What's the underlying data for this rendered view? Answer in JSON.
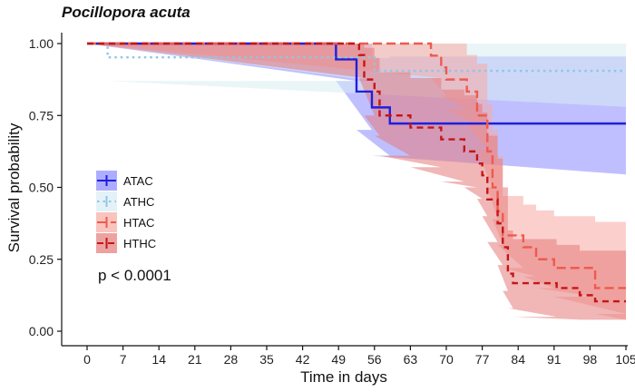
{
  "chart_data": {
    "type": "line",
    "subtype": "kaplan-meier survival curve",
    "title": "Pocillopora acuta",
    "xlabel": "Time in days",
    "ylabel": "Survival probability",
    "xlim": [
      0,
      105
    ],
    "ylim": [
      0,
      1
    ],
    "x_ticks": [
      0,
      7,
      14,
      21,
      28,
      35,
      42,
      49,
      56,
      63,
      70,
      77,
      84,
      91,
      98,
      105
    ],
    "x_tick_labels": [
      "0",
      "7",
      "14",
      "21",
      "28",
      "35",
      "42",
      "49",
      "56",
      "63",
      "70",
      "77",
      "84",
      "91",
      "98",
      "105"
    ],
    "y_ticks": [
      0,
      0.25,
      0.5,
      0.75,
      1
    ],
    "y_tick_labels": [
      "0.00",
      "0.25",
      "0.50",
      "0.75",
      "1.00"
    ],
    "grid": false,
    "legend_position": "left-middle",
    "annotation": "p < 0.0001",
    "series": [
      {
        "name": "ATAC",
        "color": "#1f1fdd",
        "band_color": "#8a8aff",
        "line_style": "solid",
        "steps": [
          [
            0,
            1.0
          ],
          [
            48.5,
            0.945
          ],
          [
            52.5,
            0.833
          ],
          [
            55.5,
            0.778
          ],
          [
            59,
            0.722
          ],
          [
            105,
            0.722
          ]
        ],
        "ci_steps": [
          [
            0,
            1.0,
            1.0
          ],
          [
            48.5,
            0.87,
            1.0
          ],
          [
            52.5,
            0.7,
            1.0
          ],
          [
            55.5,
            0.61,
            0.95
          ],
          [
            59,
            0.545,
            0.955
          ],
          [
            105,
            0.545,
            0.955
          ]
        ]
      },
      {
        "name": "ATHC",
        "color": "#8fc6e6",
        "band_color": "#d8edf3",
        "line_style": "dotted",
        "steps": [
          [
            0,
            1.0
          ],
          [
            4,
            0.952
          ],
          [
            56,
            0.905
          ],
          [
            105,
            0.905
          ]
        ],
        "ci_steps": [
          [
            0,
            1.0,
            1.0
          ],
          [
            4,
            0.87,
            1.0
          ],
          [
            56,
            0.78,
            1.0
          ],
          [
            105,
            0.78,
            1.0
          ]
        ]
      },
      {
        "name": "HTAC",
        "color": "#ee5a4f",
        "band_color": "#f7aaa3",
        "line_style": "longdash",
        "steps": [
          [
            0,
            1.0
          ],
          [
            67,
            0.958
          ],
          [
            69,
            0.917
          ],
          [
            70,
            0.875
          ],
          [
            74,
            0.833
          ],
          [
            76,
            0.75
          ],
          [
            78,
            0.625
          ],
          [
            79,
            0.5
          ],
          [
            80,
            0.417
          ],
          [
            81,
            0.333
          ],
          [
            85,
            0.292
          ],
          [
            87.5,
            0.25
          ],
          [
            91,
            0.22
          ],
          [
            99,
            0.15
          ],
          [
            105,
            0.15
          ]
        ],
        "ci_steps": [
          [
            0,
            1.0,
            1.0
          ],
          [
            67,
            0.88,
            1.0
          ],
          [
            69,
            0.82,
            1.0
          ],
          [
            70,
            0.77,
            1.0
          ],
          [
            74,
            0.72,
            0.96
          ],
          [
            76,
            0.63,
            0.93
          ],
          [
            78,
            0.5,
            0.79
          ],
          [
            79,
            0.39,
            0.7
          ],
          [
            80,
            0.3,
            0.61
          ],
          [
            81,
            0.22,
            0.47
          ],
          [
            85,
            0.19,
            0.44
          ],
          [
            87.5,
            0.15,
            0.42
          ],
          [
            91,
            0.12,
            0.4
          ],
          [
            99,
            0.06,
            0.38
          ],
          [
            105,
            0.04,
            0.38
          ]
        ]
      },
      {
        "name": "HTHC",
        "color": "#c41616",
        "band_color": "#e57a7a",
        "line_style": "dashed",
        "steps": [
          [
            0,
            1.0
          ],
          [
            53,
            0.96
          ],
          [
            54,
            0.875
          ],
          [
            56,
            0.833
          ],
          [
            57,
            0.75
          ],
          [
            63,
            0.708
          ],
          [
            69,
            0.667
          ],
          [
            73.5,
            0.625
          ],
          [
            76,
            0.583
          ],
          [
            77,
            0.542
          ],
          [
            78,
            0.458
          ],
          [
            80,
            0.375
          ],
          [
            81,
            0.292
          ],
          [
            82,
            0.2
          ],
          [
            83,
            0.167
          ],
          [
            91.5,
            0.15
          ],
          [
            96,
            0.125
          ],
          [
            99,
            0.104
          ],
          [
            105,
            0.104
          ]
        ],
        "ci_steps": [
          [
            0,
            1.0,
            1.0
          ],
          [
            53,
            0.88,
            1.0
          ],
          [
            54,
            0.75,
            0.985
          ],
          [
            56,
            0.68,
            0.95
          ],
          [
            57,
            0.61,
            0.9
          ],
          [
            63,
            0.57,
            0.88
          ],
          [
            69,
            0.52,
            0.84
          ],
          [
            73.5,
            0.5,
            0.82
          ],
          [
            76,
            0.46,
            0.79
          ],
          [
            77,
            0.4,
            0.76
          ],
          [
            78,
            0.31,
            0.68
          ],
          [
            80,
            0.23,
            0.6
          ],
          [
            81,
            0.14,
            0.5
          ],
          [
            82,
            0.08,
            0.35
          ],
          [
            83,
            0.05,
            0.32
          ],
          [
            91.5,
            0.04,
            0.3
          ],
          [
            96,
            0.04,
            0.28
          ],
          [
            99,
            0.04,
            0.28
          ],
          [
            105,
            0.04,
            0.28
          ]
        ]
      }
    ]
  }
}
